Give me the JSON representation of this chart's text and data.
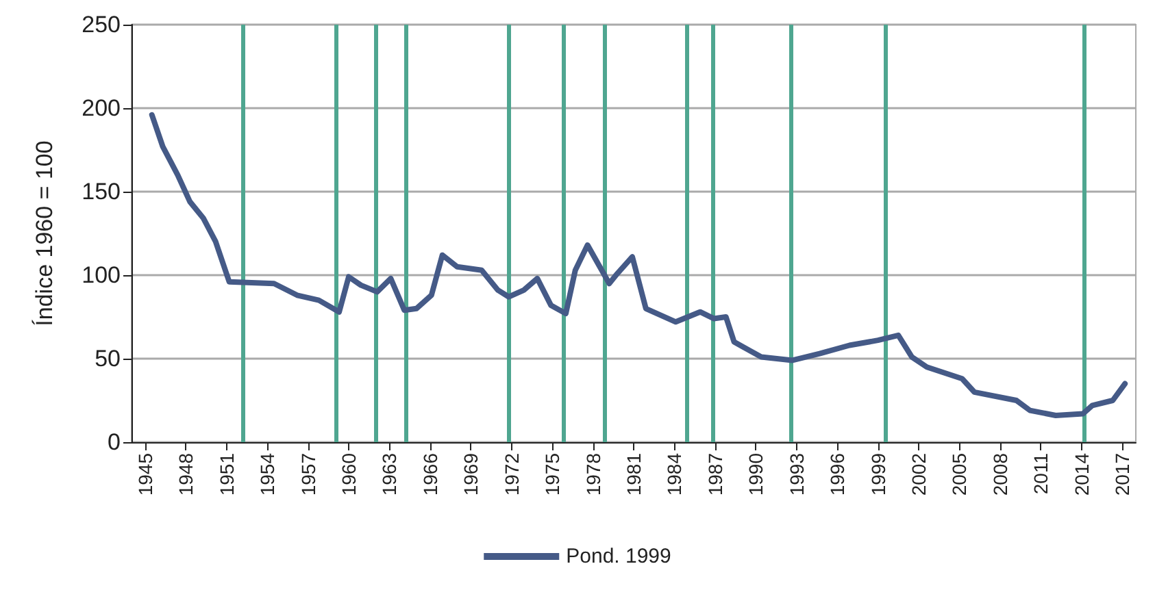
{
  "chart_data": {
    "type": "line",
    "ylabel": "Índice 1960 = 100",
    "xlim": [
      1944,
      2018
    ],
    "xticks": [
      1945,
      1948,
      1951,
      1954,
      1957,
      1960,
      1963,
      1966,
      1969,
      1972,
      1975,
      1978,
      1981,
      1984,
      1987,
      1990,
      1993,
      1996,
      1999,
      2002,
      2005,
      2008,
      2011,
      2014,
      2017
    ],
    "ylim": [
      0,
      250
    ],
    "yticks": [
      0,
      50,
      100,
      150,
      200,
      250
    ],
    "grid": "y",
    "legend": "bottom",
    "marker": "none",
    "line_style": "solid",
    "series": [
      {
        "name": "Pond. 1999",
        "color": "#455a87",
        "x": [
          1945.5,
          1946.3,
          1947.4,
          1948.3,
          1949.3,
          1950.2,
          1951.2,
          1954.5,
          1956.2,
          1957.8,
          1959.3,
          1960,
          1960.9,
          1962.1,
          1963.1,
          1964.1,
          1965,
          1966.1,
          1966.9,
          1968,
          1969.8,
          1971,
          1971.8,
          1972.9,
          1973.9,
          1974.9,
          1976,
          1976.7,
          1977.6,
          1979.2,
          1979.8,
          1980.9,
          1981.9,
          1984.1,
          1985.9,
          1986.9,
          1987.8,
          1988.4,
          1990.4,
          1992.7,
          1994.7,
          1996.9,
          1999,
          2000.5,
          2001.5,
          2002.6,
          2005.2,
          2006.1,
          2009.2,
          2010.2,
          2012.1,
          2014.1,
          2014.8,
          2016.3,
          2017.2
        ],
        "values": [
          196,
          177,
          160,
          144,
          134,
          120,
          96,
          95,
          88,
          85,
          78,
          99,
          94,
          90,
          98,
          79,
          80,
          88,
          112,
          105,
          103,
          91,
          87,
          91,
          98,
          82,
          77,
          103,
          118,
          95,
          101,
          111,
          80,
          72,
          78,
          74,
          75,
          60,
          51,
          49,
          53,
          58,
          61,
          64,
          51,
          45,
          38,
          30,
          25,
          19,
          16,
          17,
          22,
          25,
          35
        ]
      }
    ],
    "ref_lines": [
      {
        "axis": "x",
        "value": 1952.2,
        "color": "#4fa690"
      },
      {
        "axis": "x",
        "value": 1959.1,
        "color": "#4fa690"
      },
      {
        "axis": "x",
        "value": 1962,
        "color": "#4fa690"
      },
      {
        "axis": "x",
        "value": 1964.2,
        "color": "#4fa690"
      },
      {
        "axis": "x",
        "value": 1971.8,
        "color": "#4fa690"
      },
      {
        "axis": "x",
        "value": 1975.8,
        "color": "#4fa690"
      },
      {
        "axis": "x",
        "value": 1978.9,
        "color": "#4fa690"
      },
      {
        "axis": "x",
        "value": 1984.9,
        "color": "#4fa690"
      },
      {
        "axis": "x",
        "value": 1986.8,
        "color": "#4fa690"
      },
      {
        "axis": "x",
        "value": 1992.6,
        "color": "#4fa690"
      },
      {
        "axis": "x",
        "value": 1999.5,
        "color": "#4fa690"
      },
      {
        "axis": "x",
        "value": 2014.2,
        "color": "#4fa690"
      }
    ]
  }
}
